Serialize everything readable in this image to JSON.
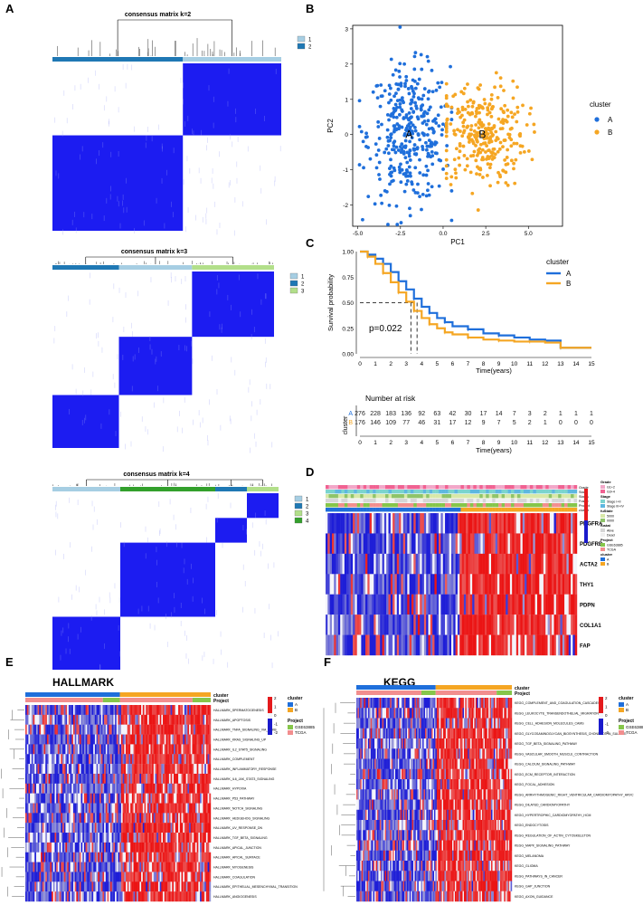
{
  "panel_labels": {
    "A": "A",
    "B": "B",
    "C": "C",
    "D": "D",
    "E": "E",
    "F": "F"
  },
  "colors": {
    "cluster_A": "#1f6fdb",
    "cluster_B": "#f5a623",
    "consensus_blue": "#1010f0",
    "cons_k_1": "#a6cee3",
    "cons_k_2": "#1f78b4",
    "cons_k_3": "#b2df8a",
    "cons_k_4": "#33a02c",
    "heat_high": "#e41a1c",
    "heat_low": "#1a1acc",
    "proj_gse": "#86c64a",
    "proj_tcga": "#f28e8e"
  },
  "chart_data": [
    {
      "type": "heatmap",
      "title": "consensus matrix k=2",
      "legend": [
        "1",
        "2"
      ],
      "block_sizes": [
        0.57,
        0.43
      ]
    },
    {
      "type": "heatmap",
      "title": "consensus matrix k=3",
      "legend": [
        "1",
        "2",
        "3"
      ],
      "block_sizes": [
        0.3,
        0.33,
        0.37
      ]
    },
    {
      "type": "heatmap",
      "title": "consensus matrix k=4",
      "legend": [
        "1",
        "2",
        "3",
        "4"
      ],
      "block_sizes": [
        0.3,
        0.42,
        0.14,
        0.14
      ]
    },
    {
      "type": "scatter",
      "xlabel": "PC1",
      "ylabel": "PC2",
      "xlim": [
        -5.3,
        7.0
      ],
      "ylim": [
        -2.6,
        3.1
      ],
      "xticks": [
        "-5.0",
        "-2.5",
        "0.0",
        "2.5",
        "5.0"
      ],
      "xtick_values": [
        -5,
        -2.5,
        0,
        2.5,
        5
      ],
      "yticks": [
        "3",
        "2",
        "1",
        "0",
        "-1",
        "-2"
      ],
      "ytick_values": [
        3,
        2,
        1,
        0,
        -1,
        -2
      ],
      "legend_title": "cluster",
      "series": [
        {
          "name": "A",
          "center": [
            -2.0,
            0.0
          ],
          "spread": [
            1.5,
            0.95
          ],
          "n": 360,
          "xrange": [
            -4.9,
            0.5
          ]
        },
        {
          "name": "B",
          "center": [
            2.3,
            0.0
          ],
          "spread": [
            1.6,
            0.75
          ],
          "n": 300,
          "xrange": [
            0.2,
            6.5
          ]
        }
      ],
      "centroid_labels": [
        {
          "text": "A",
          "x": -2.0,
          "y": 0.0
        },
        {
          "text": "B",
          "x": 2.3,
          "y": 0.0
        }
      ]
    },
    {
      "type": "line",
      "ylabel": "Survival probability",
      "xlabel": "Time(years)",
      "xlim": [
        0,
        15
      ],
      "ylim": [
        0,
        1
      ],
      "xticks": [
        "0",
        "1",
        "2",
        "3",
        "4",
        "5",
        "6",
        "7",
        "8",
        "9",
        "10",
        "11",
        "12",
        "13",
        "14",
        "15"
      ],
      "yticks": [
        "1.00",
        "0.75",
        "0.50",
        "0.25",
        "0.00"
      ],
      "ytick_values": [
        1.0,
        0.75,
        0.5,
        0.25,
        0.0
      ],
      "pvalue": "p=0.022",
      "legend_title": "cluster",
      "median_lines": [
        3.3,
        3.7
      ],
      "series": [
        {
          "name": "A",
          "points": [
            [
              0,
              1.0
            ],
            [
              0.5,
              0.97
            ],
            [
              1,
              0.93
            ],
            [
              1.5,
              0.88
            ],
            [
              2,
              0.8
            ],
            [
              2.5,
              0.71
            ],
            [
              3,
              0.63
            ],
            [
              3.5,
              0.54
            ],
            [
              4,
              0.46
            ],
            [
              4.5,
              0.4
            ],
            [
              5,
              0.35
            ],
            [
              5.5,
              0.31
            ],
            [
              6,
              0.27
            ],
            [
              7,
              0.24
            ],
            [
              8,
              0.2
            ],
            [
              9,
              0.18
            ],
            [
              10,
              0.16
            ],
            [
              11,
              0.14
            ],
            [
              12,
              0.13
            ],
            [
              13,
              0.06
            ],
            [
              15,
              0.06
            ]
          ]
        },
        {
          "name": "B",
          "points": [
            [
              0,
              1.0
            ],
            [
              0.5,
              0.95
            ],
            [
              1,
              0.88
            ],
            [
              1.5,
              0.79
            ],
            [
              2,
              0.7
            ],
            [
              2.5,
              0.6
            ],
            [
              3,
              0.51
            ],
            [
              3.5,
              0.42
            ],
            [
              4,
              0.35
            ],
            [
              4.5,
              0.29
            ],
            [
              5,
              0.25
            ],
            [
              5.5,
              0.21
            ],
            [
              6,
              0.19
            ],
            [
              7,
              0.16
            ],
            [
              8,
              0.14
            ],
            [
              9,
              0.13
            ],
            [
              10,
              0.12
            ],
            [
              11,
              0.12
            ],
            [
              12,
              0.11
            ],
            [
              13,
              0.06
            ],
            [
              15,
              0.06
            ]
          ]
        }
      ]
    },
    {
      "type": "table",
      "title": "Number at risk",
      "ylabel": "cluster",
      "xlabel": "Time(years)",
      "xticks": [
        "0",
        "1",
        "2",
        "3",
        "4",
        "5",
        "6",
        "7",
        "8",
        "9",
        "10",
        "11",
        "12",
        "13",
        "14",
        "15"
      ],
      "rows": [
        {
          "name": "A",
          "values": [
            "276",
            "228",
            "183",
            "136",
            "92",
            "63",
            "42",
            "30",
            "17",
            "14",
            "7",
            "3",
            "2",
            "1",
            "1",
            "1"
          ]
        },
        {
          "name": "B",
          "values": [
            "176",
            "146",
            "109",
            "77",
            "46",
            "31",
            "17",
            "12",
            "9",
            "7",
            "5",
            "2",
            "1",
            "0",
            "0",
            "0"
          ]
        }
      ]
    },
    {
      "type": "heatmap",
      "annotation_labels": [
        "Grade",
        "Stage",
        "Status",
        "Fustat",
        "Project",
        "cluster"
      ],
      "genes": [
        "PDGFRA",
        "PDGFRB",
        "ACTA2",
        "THY1",
        "PDPN",
        "COL1A1",
        "FAP"
      ],
      "split": 0.53,
      "legend": [
        {
          "title": "Grade",
          "items": [
            "G1+2",
            "G3+4"
          ]
        },
        {
          "title": "Stage",
          "items": [
            "Stage I+II",
            "Stage III+IV"
          ]
        },
        {
          "title": "fuState",
          "items": [
            "5000",
            "0000"
          ]
        },
        {
          "title": "fustat",
          "items": [
            "Alive",
            "Dead"
          ]
        },
        {
          "title": "Project",
          "items": [
            "GSE63885",
            "TCGA"
          ]
        },
        {
          "title": "cluster",
          "items": [
            "A",
            "B"
          ]
        }
      ]
    },
    {
      "type": "heatmap",
      "title": "HALLMARK",
      "annotation_labels": [
        "cluster",
        "Project"
      ],
      "legend": [
        {
          "title": "cluster",
          "items": [
            "A",
            "B"
          ]
        },
        {
          "title": "Project",
          "items": [
            "GSE63885",
            "TCGA"
          ]
        }
      ],
      "scale": [
        "2",
        "1",
        "0",
        "-1",
        "-2"
      ],
      "split": 0.51,
      "rows": [
        "HALLMARK_SPERMATOGENESIS",
        "HALLMARK_APOPTOSIS",
        "HALLMARK_TNFA_SIGNALING_VIA_NFKB",
        "HALLMARK_KRAS_SIGNALING_UP",
        "HALLMARK_IL2_STAT5_SIGNALING",
        "HALLMARK_COMPLEMENT",
        "HALLMARK_INFLAMMATORY_RESPONSE",
        "HALLMARK_IL6_JAK_STAT3_SIGNALING",
        "HALLMARK_HYPOXIA",
        "HALLMARK_P53_PATHWAY",
        "HALLMARK_NOTCH_SIGNALING",
        "HALLMARK_HEDGEHOG_SIGNALING",
        "HALLMARK_UV_RESPONSE_DN",
        "HALLMARK_TGF_BETA_SIGNALING",
        "HALLMARK_APICAL_JUNCTION",
        "HALLMARK_APICAL_SURFACE",
        "HALLMARK_MYOGENESIS",
        "HALLMARK_COAGULATION",
        "HALLMARK_EPITHELIAL_MESENCHYMAL_TRANSITION",
        "HALLMARK_ANGIOGENESIS"
      ]
    },
    {
      "type": "heatmap",
      "title": "KEGG",
      "annotation_labels": [
        "cluster",
        "Project"
      ],
      "legend": [
        {
          "title": "cluster",
          "items": [
            "A",
            "B"
          ]
        },
        {
          "title": "Project",
          "items": [
            "GSE63885",
            "TCGA"
          ]
        }
      ],
      "scale": [
        "2",
        "1",
        "0",
        "-1",
        "-2"
      ],
      "split": 0.51,
      "rows": [
        "KEGG_COMPLEMENT_AND_COAGULATION_CASCADES",
        "KEGG_LEUKOCYTE_TRANSENDOTHELIAL_MIGRATION",
        "KEGG_CELL_ADHESION_MOLECULES_CAMS",
        "KEGG_GLYCOSAMINOGLYCAN_BIOSYNTHESIS_CHONDROITIN_SULFATE",
        "KEGG_TGF_BETA_SIGNALING_PATHWAY",
        "KEGG_VASCULAR_SMOOTH_MUSCLE_CONTRACTION",
        "KEGG_CALCIUM_SIGNALING_PATHWAY",
        "KEGG_ECM_RECEPTOR_INTERACTION",
        "KEGG_FOCAL_ADHESION",
        "KEGG_ARRHYTHMOGENIC_RIGHT_VENTRICULAR_CARDIOMYOPATHY_ARVC",
        "KEGG_DILATED_CARDIOMYOPATHY",
        "KEGG_HYPERTROPHIC_CARDIOMYOPATHY_HCM",
        "KEGG_ENDOCYTOSIS",
        "KEGG_REGULATION_OF_ACTIN_CYTOSKELETON",
        "KEGG_MAPK_SIGNALING_PATHWAY",
        "KEGG_MELANOMA",
        "KEGG_GLIOMA",
        "KEGG_PATHWAYS_IN_CANCER",
        "KEGG_GAP_JUNCTION",
        "KEGG_AXON_GUIDANCE"
      ]
    }
  ]
}
